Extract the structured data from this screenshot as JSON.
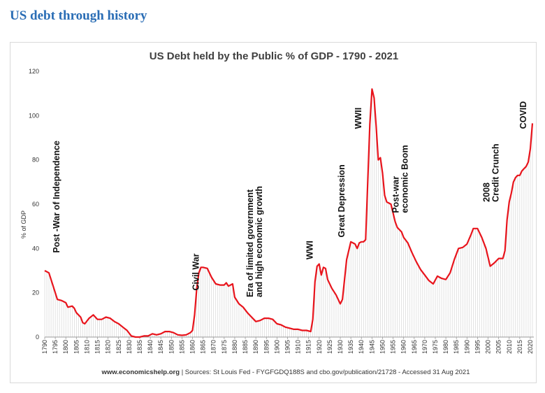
{
  "page": {
    "heading": "US debt through history"
  },
  "chart_data": {
    "type": "area",
    "title": "US Debt held by the Public % of GDP - 1790 - 2021",
    "xlabel": "",
    "ylabel": "% of GDP",
    "ylim": [
      0,
      120
    ],
    "xlim": [
      1790,
      2021
    ],
    "yticks": [
      0,
      20,
      40,
      60,
      80,
      100,
      120
    ],
    "xticks": [
      1790,
      1795,
      1800,
      1805,
      1810,
      1815,
      1820,
      1825,
      1830,
      1835,
      1840,
      1845,
      1850,
      1855,
      1860,
      1865,
      1870,
      1875,
      1880,
      1885,
      1890,
      1895,
      1900,
      1905,
      1910,
      1915,
      1920,
      1925,
      1930,
      1935,
      1940,
      1945,
      1950,
      1955,
      1960,
      1965,
      1970,
      1975,
      1980,
      1985,
      1990,
      1995,
      2000,
      2005,
      2010,
      2015,
      2020
    ],
    "grid": false,
    "legend": "none",
    "line_color": "#e8141c",
    "series": [
      {
        "points": [
          [
            1790,
            30
          ],
          [
            1792,
            29
          ],
          [
            1794,
            23
          ],
          [
            1796,
            17
          ],
          [
            1798,
            16.5
          ],
          [
            1800,
            15.5
          ],
          [
            1801,
            13.5
          ],
          [
            1803,
            14
          ],
          [
            1804,
            13
          ],
          [
            1805,
            11
          ],
          [
            1807,
            9
          ],
          [
            1808,
            6.5
          ],
          [
            1809,
            6
          ],
          [
            1811,
            8.5
          ],
          [
            1813,
            10
          ],
          [
            1815,
            8
          ],
          [
            1817,
            8
          ],
          [
            1819,
            9
          ],
          [
            1821,
            8.5
          ],
          [
            1823,
            7
          ],
          [
            1825,
            6
          ],
          [
            1827,
            4.5
          ],
          [
            1829,
            3
          ],
          [
            1831,
            0.5
          ],
          [
            1833,
            0
          ],
          [
            1835,
            0
          ],
          [
            1837,
            0.5
          ],
          [
            1839,
            0.5
          ],
          [
            1841,
            1.5
          ],
          [
            1843,
            1
          ],
          [
            1845,
            1.5
          ],
          [
            1847,
            2.5
          ],
          [
            1849,
            2.5
          ],
          [
            1851,
            2
          ],
          [
            1853,
            1
          ],
          [
            1855,
            0.8
          ],
          [
            1857,
            1
          ],
          [
            1859,
            2
          ],
          [
            1860,
            3
          ],
          [
            1861,
            10
          ],
          [
            1862,
            22
          ],
          [
            1863,
            29
          ],
          [
            1864,
            31.5
          ],
          [
            1865,
            31.5
          ],
          [
            1867,
            31
          ],
          [
            1869,
            27
          ],
          [
            1871,
            24
          ],
          [
            1873,
            23.5
          ],
          [
            1875,
            23.5
          ],
          [
            1876,
            24.5
          ],
          [
            1877,
            23
          ],
          [
            1879,
            24
          ],
          [
            1880,
            18
          ],
          [
            1882,
            15
          ],
          [
            1884,
            13.5
          ],
          [
            1886,
            11
          ],
          [
            1888,
            9
          ],
          [
            1890,
            7
          ],
          [
            1892,
            7.5
          ],
          [
            1894,
            8.5
          ],
          [
            1896,
            8.5
          ],
          [
            1898,
            8
          ],
          [
            1900,
            6
          ],
          [
            1902,
            5.5
          ],
          [
            1904,
            4.5
          ],
          [
            1906,
            4
          ],
          [
            1908,
            3.5
          ],
          [
            1910,
            3.5
          ],
          [
            1912,
            3
          ],
          [
            1914,
            3
          ],
          [
            1916,
            2.5
          ],
          [
            1917,
            8
          ],
          [
            1918,
            25
          ],
          [
            1919,
            32
          ],
          [
            1920,
            33
          ],
          [
            1921,
            28
          ],
          [
            1922,
            31.5
          ],
          [
            1923,
            31
          ],
          [
            1924,
            26
          ],
          [
            1926,
            22
          ],
          [
            1928,
            19
          ],
          [
            1930,
            15
          ],
          [
            1931,
            17
          ],
          [
            1932,
            26
          ],
          [
            1933,
            35
          ],
          [
            1934,
            39
          ],
          [
            1935,
            43
          ],
          [
            1936,
            42.5
          ],
          [
            1937,
            42
          ],
          [
            1938,
            40
          ],
          [
            1939,
            42.5
          ],
          [
            1940,
            43
          ],
          [
            1941,
            43
          ],
          [
            1942,
            44
          ],
          [
            1943,
            70
          ],
          [
            1944,
            96
          ],
          [
            1945,
            112
          ],
          [
            1946,
            108
          ],
          [
            1947,
            95
          ],
          [
            1948,
            80
          ],
          [
            1949,
            81
          ],
          [
            1950,
            74
          ],
          [
            1951,
            64
          ],
          [
            1952,
            61
          ],
          [
            1953,
            60.5
          ],
          [
            1954,
            60
          ],
          [
            1955,
            56
          ],
          [
            1956,
            52
          ],
          [
            1957,
            49.5
          ],
          [
            1958,
            48.5
          ],
          [
            1959,
            47.5
          ],
          [
            1960,
            45
          ],
          [
            1962,
            42.5
          ],
          [
            1964,
            38
          ],
          [
            1966,
            34
          ],
          [
            1968,
            30.5
          ],
          [
            1970,
            28
          ],
          [
            1972,
            25.5
          ],
          [
            1974,
            24
          ],
          [
            1976,
            27.5
          ],
          [
            1978,
            26.5
          ],
          [
            1980,
            26
          ],
          [
            1982,
            29
          ],
          [
            1984,
            35
          ],
          [
            1986,
            40
          ],
          [
            1988,
            40.5
          ],
          [
            1990,
            42
          ],
          [
            1992,
            46.5
          ],
          [
            1993,
            49
          ],
          [
            1995,
            49
          ],
          [
            1997,
            45
          ],
          [
            1999,
            40
          ],
          [
            2001,
            32
          ],
          [
            2003,
            33.5
          ],
          [
            2005,
            35.5
          ],
          [
            2007,
            35.5
          ],
          [
            2008,
            39
          ],
          [
            2009,
            53
          ],
          [
            2010,
            61
          ],
          [
            2011,
            65
          ],
          [
            2012,
            70
          ],
          [
            2013,
            72
          ],
          [
            2014,
            73
          ],
          [
            2015,
            73
          ],
          [
            2016,
            75
          ],
          [
            2017,
            76
          ],
          [
            2018,
            77
          ],
          [
            2019,
            79
          ],
          [
            2020,
            85
          ],
          [
            2021,
            96.5
          ]
        ]
      }
    ],
    "annotations": [
      {
        "text": "Post -War of Independence",
        "lines": [
          "Post -War of Independence"
        ],
        "x": 1797,
        "y": 38
      },
      {
        "text": "Civil War",
        "lines": [
          "Civil War"
        ],
        "x": 1863,
        "y": 21
      },
      {
        "text": "Era of limited government and high economic growth",
        "lines": [
          "Era of limited government",
          "and high economic growth"
        ],
        "x": 1893,
        "y": 18
      },
      {
        "text": "WWI",
        "lines": [
          "WWI"
        ],
        "x": 1917,
        "y": 35
      },
      {
        "text": "Great Depression",
        "lines": [
          "Great Depression"
        ],
        "x": 1932,
        "y": 45
      },
      {
        "text": "WWII",
        "lines": [
          "WWII"
        ],
        "x": 1940,
        "y": 94
      },
      {
        "text": "Post-war economic Boom",
        "lines": [
          "Post-war",
          "economic Boom"
        ],
        "x": 1962,
        "y": 56
      },
      {
        "text": "2008 Credit Crunch",
        "lines": [
          "2008",
          "Credit Crunch"
        ],
        "x": 2005,
        "y": 61
      },
      {
        "text": "COVID",
        "lines": [
          "COVID"
        ],
        "x": 2018,
        "y": 94
      }
    ],
    "source_bold": "www.economicshelp.org",
    "source_rest": " | Sources: St Louis Fed - FYGFGDQ188S and cbo.gov/publication/21728 - Accessed 31 Aug 2021"
  }
}
